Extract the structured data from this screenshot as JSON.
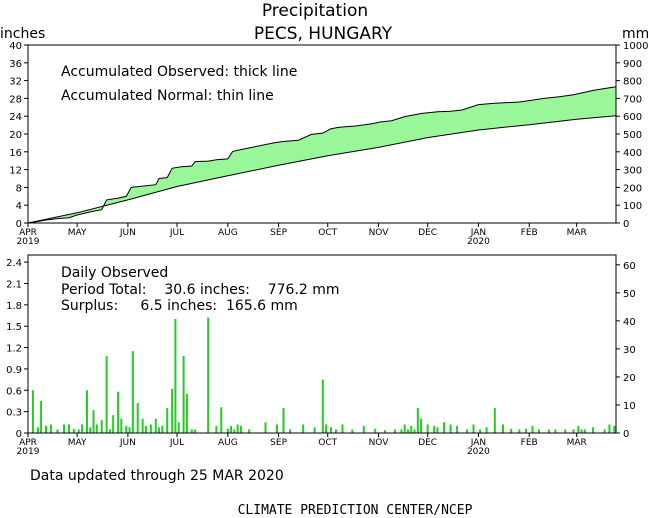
{
  "header": {
    "title": "Precipitation",
    "subtitle": "PECS, HUNGARY",
    "left_unit": "inches",
    "right_unit": "mm"
  },
  "chart_data": [
    {
      "type": "area",
      "legend": [
        "Accumulated Observed: thick line",
        "Accumulated Normal: thin line"
      ],
      "x_ticks": [
        {
          "label": "APR",
          "year": "2019",
          "day": 0
        },
        {
          "label": "MAY",
          "year": "",
          "day": 30
        },
        {
          "label": "JUN",
          "year": "",
          "day": 61
        },
        {
          "label": "JUL",
          "year": "",
          "day": 91
        },
        {
          "label": "AUG",
          "year": "",
          "day": 122
        },
        {
          "label": "SEP",
          "year": "",
          "day": 153
        },
        {
          "label": "OCT",
          "year": "",
          "day": 183
        },
        {
          "label": "NOV",
          "year": "",
          "day": 214
        },
        {
          "label": "DEC",
          "year": "",
          "day": 244
        },
        {
          "label": "JAN",
          "year": "2020",
          "day": 275
        },
        {
          "label": "FEB",
          "year": "",
          "day": 306
        },
        {
          "label": "MAR",
          "year": "",
          "day": 335
        }
      ],
      "x_range": [
        0,
        359
      ],
      "ylim_in": [
        0,
        40
      ],
      "y_ticks_in": [
        "0",
        "4",
        "8",
        "12",
        "16",
        "20",
        "24",
        "28",
        "32",
        "36",
        "40"
      ],
      "y_ticks_mm": [
        "0",
        "100",
        "200",
        "300",
        "400",
        "500",
        "600",
        "700",
        "800",
        "900",
        "1000"
      ],
      "series": [
        {
          "name": "Accumulated Observed",
          "x": [
            0,
            5,
            10,
            18,
            25,
            30,
            38,
            45,
            48,
            55,
            60,
            63,
            70,
            78,
            80,
            85,
            88,
            93,
            100,
            102,
            110,
            115,
            122,
            125,
            130,
            150,
            155,
            165,
            173,
            180,
            185,
            190,
            200,
            210,
            215,
            222,
            230,
            240,
            250,
            258,
            265,
            275,
            285,
            300,
            306,
            315,
            325,
            333,
            340,
            345,
            359
          ],
          "y": [
            0,
            0.3,
            0.6,
            1.0,
            1.2,
            1.8,
            2.5,
            3.0,
            5.2,
            5.6,
            6.0,
            8.0,
            8.3,
            8.6,
            10.0,
            10.2,
            12.3,
            12.6,
            12.8,
            13.8,
            13.9,
            14.2,
            14.4,
            16.1,
            16.5,
            18.0,
            18.3,
            18.6,
            19.9,
            20.2,
            21.2,
            21.5,
            21.8,
            22.3,
            22.7,
            23.0,
            23.9,
            24.6,
            25.0,
            25.1,
            25.4,
            26.6,
            26.9,
            27.2,
            27.5,
            28.0,
            28.4,
            28.8,
            29.4,
            29.8,
            30.6
          ]
        },
        {
          "name": "Accumulated Normal",
          "x": [
            0,
            30,
            61,
            91,
            122,
            153,
            183,
            214,
            244,
            275,
            306,
            335,
            359
          ],
          "y": [
            0,
            2.3,
            5.2,
            8.2,
            10.6,
            13.0,
            15.1,
            17.0,
            19.2,
            20.9,
            22.1,
            23.3,
            24.1
          ]
        }
      ]
    },
    {
      "type": "bar",
      "title": "Daily Observed",
      "period_total_text": "Period Total:    30.6 inches:    776.2 mm",
      "surplus_text": "Surplus:     6.5 inches:  165.6 mm",
      "ylim_in": [
        0,
        2.5
      ],
      "y_ticks_in": [
        "0",
        "0.3",
        "0.6",
        "0.9",
        "1.2",
        "1.5",
        "1.8",
        "2.1",
        "2.4"
      ],
      "y_ticks_mm": [
        "0",
        "10",
        "20",
        "30",
        "40",
        "50",
        "60"
      ],
      "day": [
        3,
        6,
        8,
        11,
        14,
        18,
        22,
        25,
        28,
        31,
        33,
        36,
        38,
        40,
        42,
        45,
        48,
        50,
        52,
        55,
        57,
        60,
        62,
        64,
        67,
        70,
        72,
        75,
        78,
        80,
        82,
        85,
        88,
        90,
        92,
        95,
        97,
        100,
        102,
        110,
        115,
        118,
        122,
        124,
        126,
        128,
        130,
        135,
        145,
        152,
        156,
        160,
        168,
        175,
        180,
        182,
        185,
        188,
        192,
        198,
        205,
        212,
        218,
        224,
        228,
        230,
        232,
        234,
        236,
        238,
        240,
        244,
        248,
        250,
        254,
        258,
        262,
        268,
        272,
        276,
        280,
        285,
        290,
        295,
        300,
        304,
        308,
        312,
        318,
        322,
        328,
        333,
        336,
        338,
        340,
        345,
        352,
        355,
        358
      ],
      "values": [
        0.6,
        0.08,
        0.45,
        0.1,
        0.12,
        0.05,
        0.12,
        0.12,
        0.06,
        0.05,
        0.12,
        0.6,
        0.08,
        0.32,
        0.12,
        0.18,
        1.08,
        0.05,
        0.25,
        0.58,
        0.2,
        0.1,
        0.08,
        1.15,
        0.42,
        0.2,
        0.1,
        0.12,
        0.2,
        0.08,
        0.1,
        0.35,
        0.62,
        1.6,
        0.15,
        1.08,
        0.55,
        0.05,
        0.05,
        1.62,
        0.1,
        0.36,
        0.06,
        0.1,
        0.05,
        0.12,
        0.1,
        0.05,
        0.15,
        0.12,
        0.35,
        0.05,
        0.12,
        0.08,
        0.75,
        0.12,
        0.08,
        0.05,
        0.12,
        0.05,
        0.1,
        0.06,
        0.04,
        0.05,
        0.05,
        0.12,
        0.05,
        0.1,
        0.05,
        0.35,
        0.2,
        0.12,
        0.1,
        0.08,
        0.15,
        0.12,
        0.1,
        0.05,
        0.12,
        0.05,
        0.08,
        0.35,
        0.12,
        0.06,
        0.05,
        0.06,
        0.1,
        0.05,
        0.05,
        0.05,
        0.05,
        0.05,
        0.1,
        0.05,
        0.05,
        0.08,
        0.05,
        0.12,
        0.1
      ]
    }
  ],
  "footer": {
    "updated": "Data updated through 25 MAR 2020",
    "credit": "CLIMATE PREDICTION CENTER/NCEP"
  },
  "colors": {
    "fill": "#99f799",
    "bar": "#22cc22",
    "line": "#000000"
  }
}
